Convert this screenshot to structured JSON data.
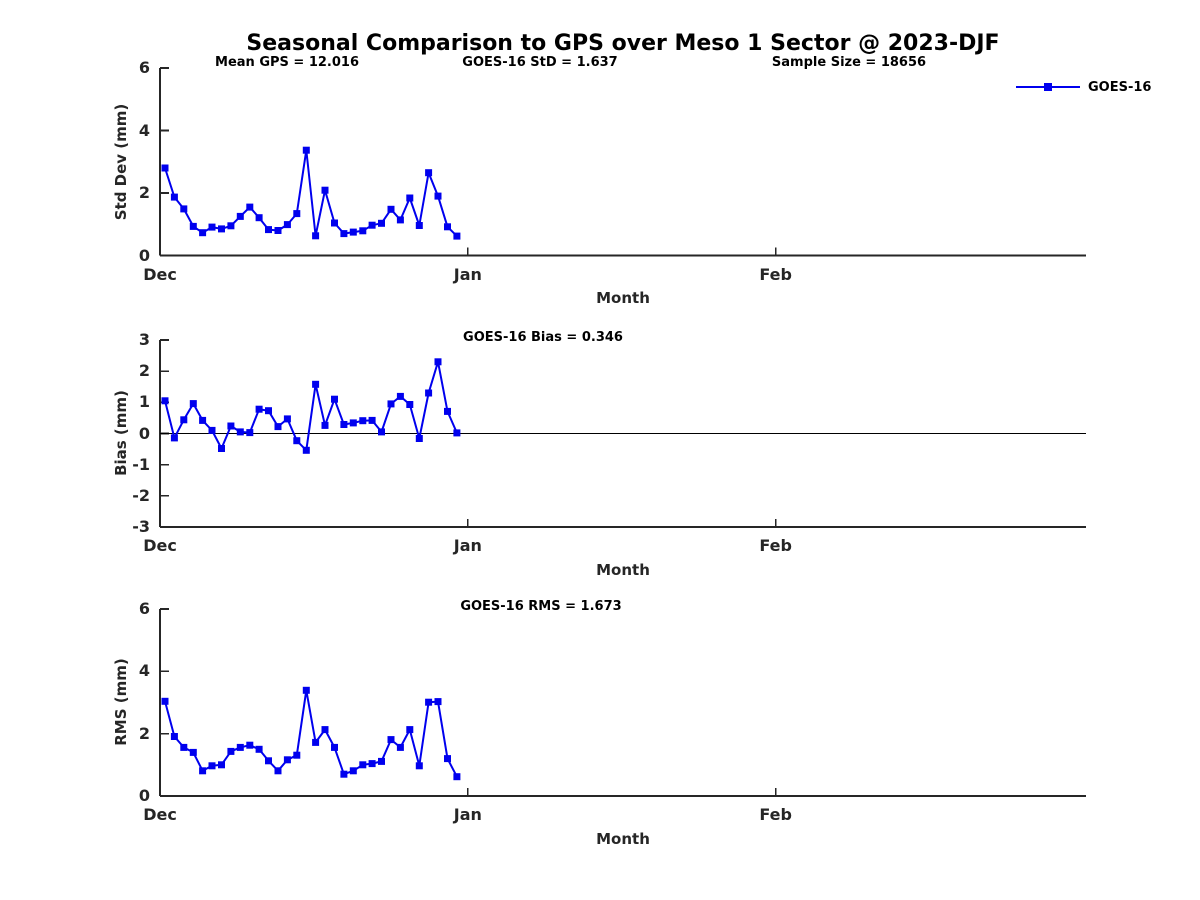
{
  "header": {
    "title": "Seasonal Comparison to GPS over Meso 1 Sector @ 2023-DJF"
  },
  "legend": {
    "label": "GOES-16",
    "color": "#0000EE"
  },
  "chart_data": [
    {
      "type": "line",
      "ylabel": "Std Dev (mm)",
      "xlabel": "Month",
      "ylim": [
        0,
        6
      ],
      "yticks": [
        0,
        2,
        4,
        6
      ],
      "x_tick_labels": [
        "Dec",
        "Jan",
        "Feb"
      ],
      "x_tick_days": [
        0,
        31,
        62
      ],
      "x_range_days": [
        0,
        93.25
      ],
      "grid": false,
      "zero_line": false,
      "legend_position": "top-right",
      "annotations": [
        "Mean GPS = 12.016",
        "GOES-16 StD = 1.637",
        "Sample Size = 18656"
      ],
      "series": [
        {
          "name": "GOES-16",
          "color": "#0000EE",
          "marker": "square",
          "x_days": [
            0.5,
            1.45,
            2.4,
            3.35,
            4.29,
            5.24,
            6.19,
            7.14,
            8.09,
            9.04,
            9.98,
            10.93,
            11.88,
            12.83,
            13.78,
            14.73,
            15.67,
            16.62,
            17.57,
            18.52,
            19.47,
            20.42,
            21.36,
            22.31,
            23.26,
            24.21,
            25.16,
            26.11,
            27.05,
            28.0,
            28.95,
            29.9
          ],
          "values": [
            2.8,
            1.87,
            1.49,
            0.93,
            0.73,
            0.91,
            0.85,
            0.95,
            1.25,
            1.55,
            1.21,
            0.83,
            0.8,
            0.99,
            1.34,
            3.37,
            0.63,
            2.09,
            1.04,
            0.7,
            0.75,
            0.79,
            0.97,
            1.03,
            1.48,
            1.14,
            1.84,
            0.96,
            2.65,
            1.9,
            0.92,
            0.62
          ]
        }
      ]
    },
    {
      "type": "line",
      "ylabel": "Bias (mm)",
      "xlabel": "Month",
      "ylim": [
        -3,
        3
      ],
      "yticks": [
        3,
        2,
        1,
        0,
        -1,
        -2,
        -3
      ],
      "x_tick_labels": [
        "Dec",
        "Jan",
        "Feb"
      ],
      "x_tick_days": [
        0,
        31,
        62
      ],
      "x_range_days": [
        0,
        93.25
      ],
      "grid": false,
      "zero_line": true,
      "annotations": [
        "GOES-16 Bias = 0.346"
      ],
      "series": [
        {
          "name": "GOES-16",
          "color": "#0000EE",
          "marker": "square",
          "x_days": [
            0.5,
            1.45,
            2.4,
            3.35,
            4.29,
            5.24,
            6.19,
            7.14,
            8.09,
            9.04,
            9.98,
            10.93,
            11.88,
            12.83,
            13.78,
            14.73,
            15.67,
            16.62,
            17.57,
            18.52,
            19.47,
            20.42,
            21.36,
            22.31,
            23.26,
            24.21,
            25.16,
            26.11,
            27.05,
            28.0,
            28.95,
            29.9
          ],
          "values": [
            1.05,
            -0.14,
            0.44,
            0.96,
            0.42,
            0.1,
            -0.48,
            0.24,
            0.05,
            0.03,
            0.78,
            0.73,
            0.22,
            0.47,
            -0.23,
            -0.54,
            1.58,
            0.26,
            1.1,
            0.29,
            0.34,
            0.41,
            0.42,
            0.05,
            0.95,
            1.19,
            0.93,
            -0.16,
            1.3,
            2.3,
            0.71,
            0.02
          ]
        }
      ]
    },
    {
      "type": "line",
      "ylabel": "RMS (mm)",
      "xlabel": "Month",
      "ylim": [
        0,
        6
      ],
      "yticks": [
        0,
        2,
        4,
        6
      ],
      "x_tick_labels": [
        "Dec",
        "Jan",
        "Feb"
      ],
      "x_tick_days": [
        0,
        31,
        62
      ],
      "x_range_days": [
        0,
        93.25
      ],
      "grid": false,
      "zero_line": false,
      "annotations": [
        "GOES-16 RMS = 1.673"
      ],
      "series": [
        {
          "name": "GOES-16",
          "color": "#0000EE",
          "marker": "square",
          "x_days": [
            0.5,
            1.45,
            2.4,
            3.35,
            4.29,
            5.24,
            6.19,
            7.14,
            8.09,
            9.04,
            9.98,
            10.93,
            11.88,
            12.83,
            13.78,
            14.73,
            15.67,
            16.62,
            17.57,
            18.52,
            19.47,
            20.42,
            21.36,
            22.31,
            23.26,
            24.21,
            25.16,
            26.11,
            27.05,
            28.0,
            28.95,
            29.9
          ],
          "values": [
            3.04,
            1.91,
            1.56,
            1.4,
            0.81,
            0.97,
            1.0,
            1.43,
            1.56,
            1.63,
            1.5,
            1.13,
            0.81,
            1.16,
            1.31,
            3.39,
            1.72,
            2.13,
            1.56,
            0.7,
            0.81,
            1.0,
            1.04,
            1.11,
            1.81,
            1.56,
            2.13,
            0.97,
            3.01,
            3.03,
            1.2,
            0.62
          ]
        }
      ]
    }
  ]
}
